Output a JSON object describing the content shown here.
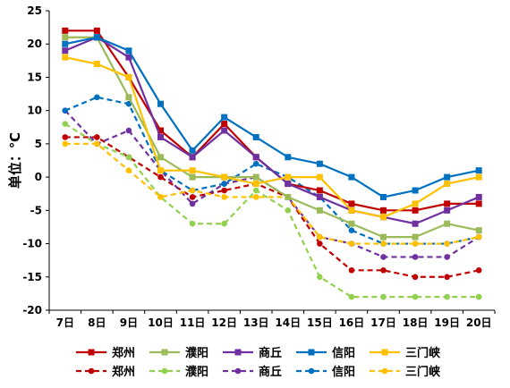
{
  "chart_data": {
    "type": "line",
    "ylabel": "单位：℃",
    "ylim": [
      -20,
      25
    ],
    "yticks": [
      -20,
      -15,
      -10,
      -5,
      0,
      5,
      10,
      15,
      20,
      25
    ],
    "grid": false,
    "legend_placement": "bottom",
    "categories": [
      "7日",
      "8日",
      "9日",
      "10日",
      "11日",
      "12日",
      "13日",
      "14日",
      "15日",
      "16日",
      "17日",
      "18日",
      "19日",
      "20日"
    ],
    "series": [
      {
        "name": "郑州",
        "style": "solid",
        "color": "#c00000",
        "marker": "square",
        "values": [
          22,
          22,
          15,
          7,
          3,
          8,
          3,
          -1,
          -2,
          -4,
          -5,
          -5,
          -4,
          -4
        ]
      },
      {
        "name": "濮阳",
        "style": "solid",
        "color": "#9bbb59",
        "marker": "square",
        "values": [
          21,
          21,
          12,
          3,
          0,
          0,
          0,
          -3,
          -5,
          -7,
          -9,
          -9,
          -7,
          -8
        ]
      },
      {
        "name": "商丘",
        "style": "solid",
        "color": "#7030a0",
        "marker": "square",
        "values": [
          19,
          21,
          18,
          6,
          3,
          7,
          3,
          -1,
          -3,
          -5,
          -6,
          -7,
          -5,
          -3
        ]
      },
      {
        "name": "信阳",
        "style": "solid",
        "color": "#0070c0",
        "marker": "square",
        "values": [
          20,
          21,
          19,
          11,
          4,
          9,
          6,
          3,
          2,
          0,
          -3,
          -2,
          0,
          1
        ]
      },
      {
        "name": "三门峡",
        "style": "solid",
        "color": "#ffc000",
        "marker": "square",
        "values": [
          18,
          17,
          15,
          1,
          1,
          0,
          -1,
          0,
          0,
          -5,
          -6,
          -4,
          -1,
          0
        ]
      },
      {
        "name": "郑州",
        "style": "dashed",
        "color": "#c00000",
        "marker": "circle",
        "values": [
          6,
          6,
          3,
          0,
          -3,
          -2,
          -1,
          -3,
          -10,
          -14,
          -14,
          -15,
          -15,
          -14
        ]
      },
      {
        "name": "濮阳",
        "style": "dashed",
        "color": "#92d050",
        "marker": "circle",
        "values": [
          8,
          5,
          3,
          -3,
          -7,
          -7,
          -2,
          -5,
          -15,
          -18,
          -18,
          -18,
          -18,
          -18
        ]
      },
      {
        "name": "商丘",
        "style": "dashed",
        "color": "#7030a0",
        "marker": "circle",
        "values": [
          10,
          5,
          7,
          1,
          -4,
          -1,
          0,
          -3,
          -9,
          -10,
          -12,
          -12,
          -12,
          -9
        ]
      },
      {
        "name": "信阳",
        "style": "dashed",
        "color": "#0070c0",
        "marker": "circle",
        "values": [
          10,
          12,
          11,
          1,
          -2,
          -1,
          2,
          0,
          -3,
          -8,
          -10,
          -10,
          -10,
          -9
        ]
      },
      {
        "name": "三门峡",
        "style": "dashed",
        "color": "#ffc000",
        "marker": "circle",
        "values": [
          5,
          5,
          1,
          -3,
          -2,
          -3,
          -3,
          -3,
          -9,
          -10,
          -10,
          -10,
          -10,
          -9
        ]
      }
    ]
  }
}
